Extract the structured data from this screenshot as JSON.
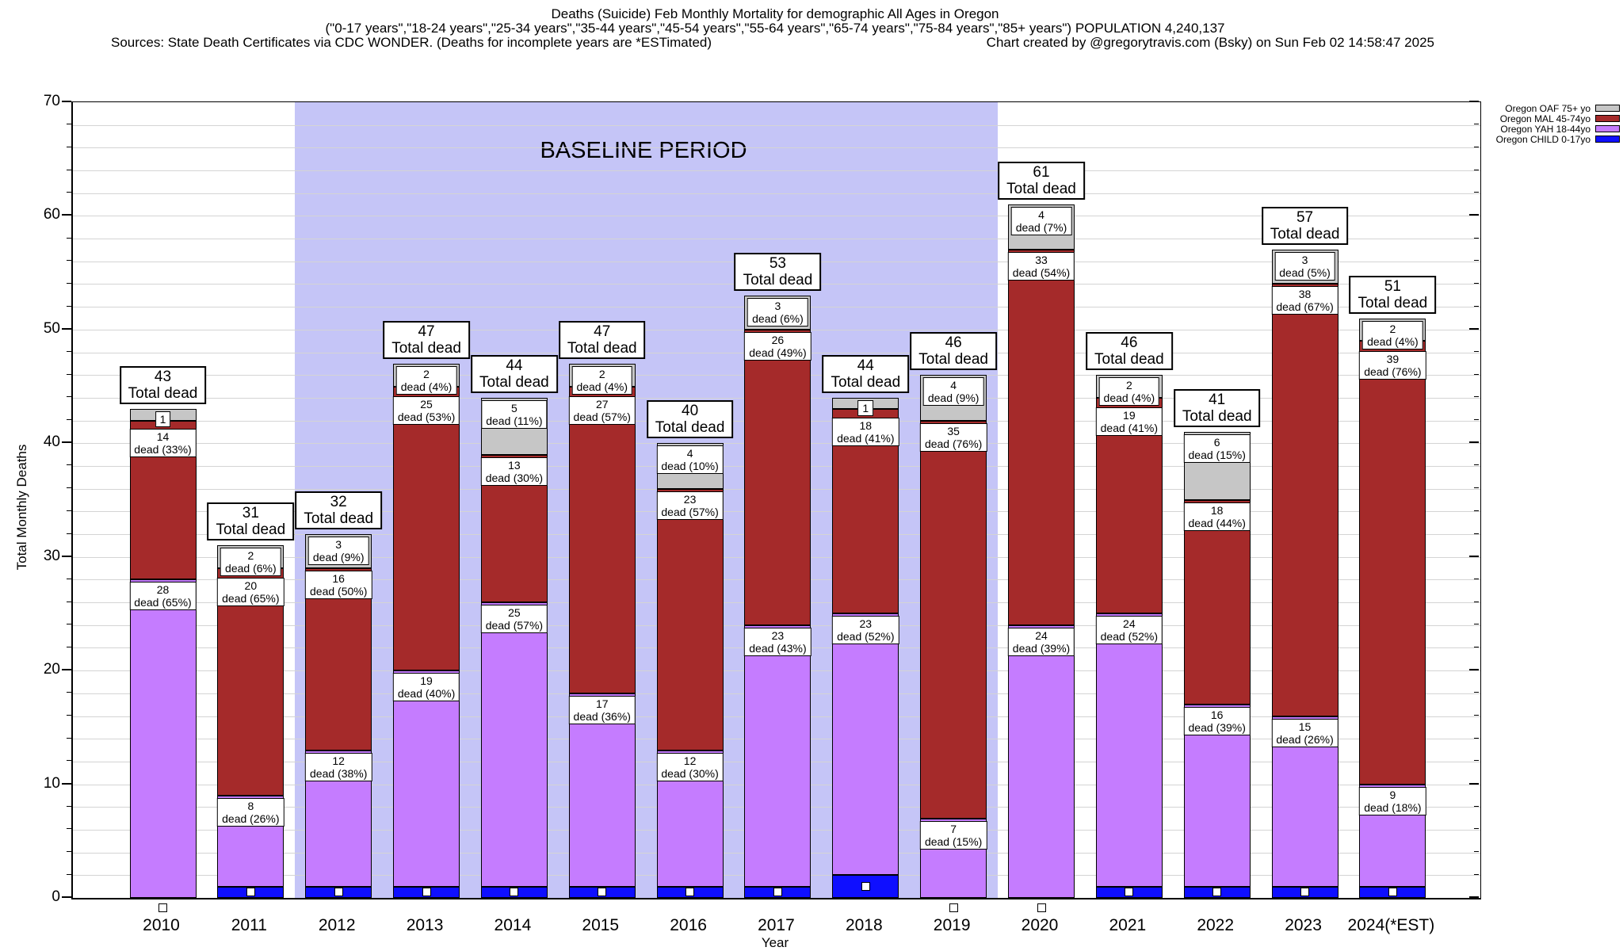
{
  "title": {
    "line1": "Deaths (Suicide) Feb Monthly Mortality for demographic All Ages in Oregon",
    "line2": "(\"0-17 years\",\"18-24 years\",\"25-34 years\",\"35-44 years\",\"45-54 years\",\"55-64 years\",\"65-74 years\",\"75-84 years\",\"85+ years\") POPULATION 4,240,137",
    "line3_left": "Sources: State Death Certificates via CDC WONDER. (Deaths for incomplete years are *ESTimated)",
    "line3_right": "Chart created by @gregorytravis.com (Bsky) on Sun Feb 02 14:58:47 2025"
  },
  "legend": {
    "items": [
      {
        "label": "Oregon OAF 75+ yo",
        "color": "#c6c6c6"
      },
      {
        "label": "Oregon MAL 45-74yo",
        "color": "#a52a2a"
      },
      {
        "label": "Oregon YAH 18-44yo",
        "color": "#c57cff"
      },
      {
        "label": "Oregon CHILD 0-17yo",
        "color": "#0f0fff"
      }
    ]
  },
  "chart_data": {
    "type": "bar",
    "stacked": true,
    "title": "Deaths (Suicide) Feb Monthly Mortality for demographic All Ages in Oregon",
    "xlabel": "Year",
    "ylabel": "Total Monthly Deaths",
    "ylim": [
      0,
      70
    ],
    "y_major_step": 10,
    "y_minor_step": 2,
    "grid": true,
    "legend_position": "top-right-outside",
    "baseline_region": {
      "label": "BASELINE PERIOD",
      "x_start_category": "2012",
      "x_end_category": "2019",
      "color": "#c5c5f7"
    },
    "categories": [
      "2010",
      "2011",
      "2012",
      "2013",
      "2014",
      "2015",
      "2016",
      "2017",
      "2018",
      "2019",
      "2020",
      "2021",
      "2022",
      "2023",
      "2024(*EST)"
    ],
    "totals": [
      43,
      31,
      32,
      47,
      44,
      47,
      40,
      53,
      44,
      46,
      61,
      46,
      41,
      57,
      51
    ],
    "total_label": "Total dead",
    "series": [
      {
        "name": "Oregon CHILD 0-17yo",
        "color": "#0f0fff",
        "values": [
          0,
          1,
          1,
          1,
          1,
          1,
          1,
          1,
          2,
          0,
          0,
          1,
          1,
          1,
          1
        ],
        "segment_labels": null
      },
      {
        "name": "Oregon YAH 18-44yo",
        "color": "#c57cff",
        "values": [
          28,
          8,
          12,
          19,
          25,
          17,
          12,
          23,
          23,
          7,
          24,
          24,
          16,
          15,
          9
        ],
        "segment_labels": [
          {
            "n": "28",
            "d": "dead (65%)"
          },
          {
            "n": "8",
            "d": "dead (26%)"
          },
          {
            "n": "12",
            "d": "dead (38%)"
          },
          {
            "n": "19",
            "d": "dead (40%)"
          },
          {
            "n": "25",
            "d": "dead (57%)"
          },
          {
            "n": "17",
            "d": "dead (36%)"
          },
          {
            "n": "12",
            "d": "dead (30%)"
          },
          {
            "n": "23",
            "d": "dead (43%)"
          },
          {
            "n": "23",
            "d": "dead (52%)"
          },
          {
            "n": "7",
            "d": "dead (15%)"
          },
          {
            "n": "24",
            "d": "dead (39%)"
          },
          {
            "n": "24",
            "d": "dead (52%)"
          },
          {
            "n": "16",
            "d": "dead (39%)"
          },
          {
            "n": "15",
            "d": "dead (26%)"
          },
          {
            "n": "9",
            "d": "dead (18%)"
          }
        ]
      },
      {
        "name": "Oregon MAL 45-74yo",
        "color": "#a52a2a",
        "values": [
          14,
          20,
          16,
          25,
          13,
          27,
          23,
          26,
          18,
          35,
          33,
          19,
          18,
          38,
          39
        ],
        "segment_labels": [
          {
            "n": "14",
            "d": "dead (33%)"
          },
          {
            "n": "20",
            "d": "dead (65%)"
          },
          {
            "n": "16",
            "d": "dead (50%)"
          },
          {
            "n": "25",
            "d": "dead (53%)"
          },
          {
            "n": "13",
            "d": "dead (30%)"
          },
          {
            "n": "27",
            "d": "dead (57%)"
          },
          {
            "n": "23",
            "d": "dead (57%)"
          },
          {
            "n": "26",
            "d": "dead (49%)"
          },
          {
            "n": "18",
            "d": "dead (41%)"
          },
          {
            "n": "35",
            "d": "dead (76%)"
          },
          {
            "n": "33",
            "d": "dead (54%)"
          },
          {
            "n": "19",
            "d": "dead (41%)"
          },
          {
            "n": "18",
            "d": "dead (44%)"
          },
          {
            "n": "38",
            "d": "dead (67%)"
          },
          {
            "n": "39",
            "d": "dead (76%)"
          }
        ]
      },
      {
        "name": "Oregon OAF 75+ yo",
        "color": "#c6c6c6",
        "values": [
          1,
          2,
          3,
          2,
          5,
          2,
          4,
          3,
          1,
          4,
          4,
          2,
          6,
          3,
          2
        ],
        "segment_labels": [
          {
            "n": "1",
            "d": null
          },
          {
            "n": "2",
            "d": "dead (6%)"
          },
          {
            "n": "3",
            "d": "dead (9%)"
          },
          {
            "n": "2",
            "d": "dead (4%)"
          },
          {
            "n": "5",
            "d": "dead (11%)"
          },
          {
            "n": "2",
            "d": "dead (4%)"
          },
          {
            "n": "4",
            "d": "dead (10%)"
          },
          {
            "n": "3",
            "d": "dead (6%)"
          },
          {
            "n": "1",
            "d": null
          },
          {
            "n": "4",
            "d": "dead (9%)"
          },
          {
            "n": "4",
            "d": "dead (7%)"
          },
          {
            "n": "2",
            "d": "dead (4%)"
          },
          {
            "n": "6",
            "d": "dead (15%)"
          },
          {
            "n": "3",
            "d": "dead (5%)"
          },
          {
            "n": "2",
            "d": "dead (4%)"
          }
        ]
      }
    ]
  }
}
